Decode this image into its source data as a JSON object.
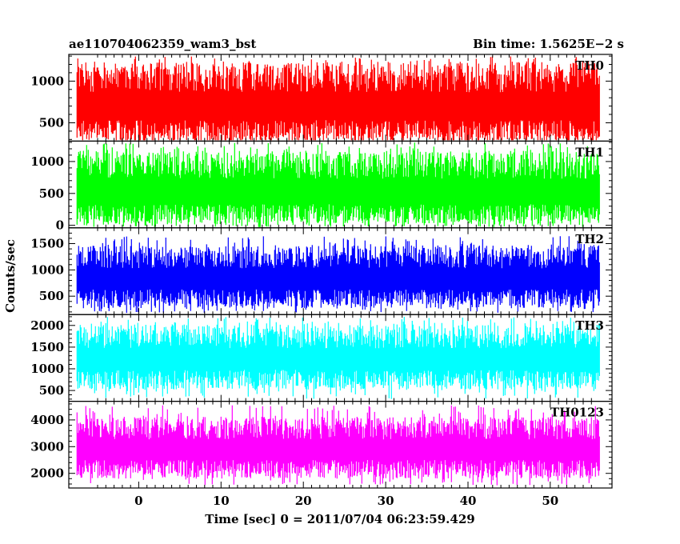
{
  "header": {
    "left_title": "ae110704062359_wam3_bst",
    "right_title": "Bin time: 1.5625E−2 s"
  },
  "axes": {
    "ylabel": "Counts/sec",
    "xlabel": "Time [sec] 0 = 2011/07/04 06:23:59.429"
  },
  "chart_data": {
    "type": "line",
    "x_range": [
      -8.5,
      57.5
    ],
    "x_ticks": [
      0,
      10,
      20,
      30,
      40,
      50
    ],
    "x_data_range": [
      -7.5,
      56
    ],
    "bin_time_s": 0.015625,
    "panels": [
      {
        "name": "TH0",
        "color": "#ff0000",
        "ylim": [
          280,
          1320
        ],
        "yticks": [
          500,
          1000
        ],
        "lo": 380,
        "hi": 1050,
        "peak": 1300,
        "low_floor": 290
      },
      {
        "name": "TH1",
        "color": "#00ff00",
        "ylim": [
          -40,
          1320
        ],
        "yticks": [
          0,
          500,
          1000
        ],
        "lo": 150,
        "hi": 950,
        "peak": 1300,
        "low_floor": 30
      },
      {
        "name": "TH2",
        "color": "#0000ff",
        "ylim": [
          150,
          1800
        ],
        "yticks": [
          500,
          1000,
          1500
        ],
        "lo": 450,
        "hi": 1250,
        "peak": 1650,
        "low_floor": 180
      },
      {
        "name": "TH3",
        "color": "#00ffff",
        "ylim": [
          250,
          2250
        ],
        "yticks": [
          500,
          1000,
          1500,
          2000
        ],
        "lo": 750,
        "hi": 1750,
        "peak": 2200,
        "low_floor": 300
      },
      {
        "name": "TH0123",
        "color": "#ff00ff",
        "ylim": [
          1450,
          4700
        ],
        "yticks": [
          2000,
          3000,
          4000
        ],
        "lo": 2150,
        "hi": 3700,
        "peak": 4550,
        "low_floor": 1550
      }
    ]
  }
}
